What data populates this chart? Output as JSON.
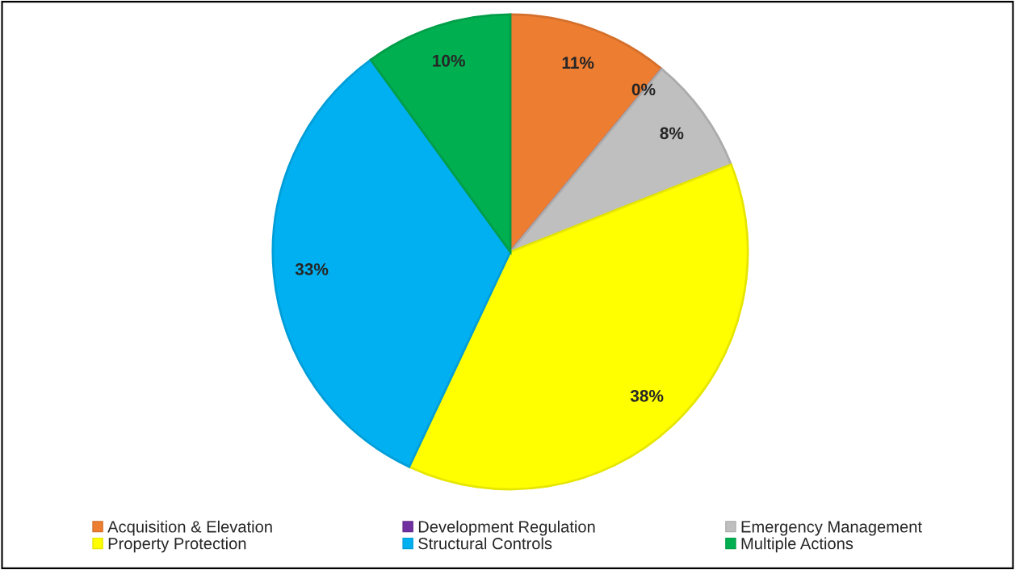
{
  "chart_data": {
    "type": "pie",
    "categories": [
      "Acquisition & Elevation",
      "Development Regulation",
      "Emergency Management",
      "Property Protection",
      "Structural Controls",
      "Multiple Actions"
    ],
    "values": [
      11,
      0,
      8,
      38,
      33,
      10
    ],
    "value_labels": [
      "11%",
      "0%",
      "8%",
      "38%",
      "33%",
      "10%"
    ],
    "colors": [
      "#ed7d31",
      "#7030a0",
      "#bfbfbf",
      "#ffff00",
      "#00b0f0",
      "#00b050"
    ],
    "legend": "bottom"
  }
}
